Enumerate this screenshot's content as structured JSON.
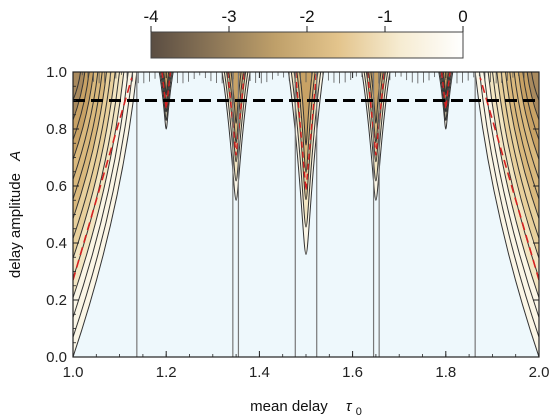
{
  "chart_data": {
    "type": "heatmap",
    "title": "",
    "xlabel": "mean delay",
    "xlabel_symbol": "τ",
    "xlabel_subscript": "0",
    "ylabel": "delay amplitude",
    "ylabel_symbol": "A",
    "xlim": [
      1.0,
      2.0
    ],
    "ylim": [
      0.0,
      1.0
    ],
    "x_ticks": [
      1.0,
      1.2,
      1.4,
      1.6,
      1.8,
      2.0
    ],
    "x_tick_labels": [
      "1.0",
      "1.2",
      "1.4",
      "1.6",
      "1.8",
      "2.0"
    ],
    "y_ticks": [
      0.0,
      0.2,
      0.4,
      0.6,
      0.8,
      1.0
    ],
    "y_tick_labels": [
      "0.0",
      "0.2",
      "0.4",
      "0.6",
      "0.8",
      "1.0"
    ],
    "colorbar": {
      "range": [
        -4,
        0
      ],
      "ticks": [
        -4,
        -3,
        -2,
        -1,
        0
      ],
      "tick_labels": [
        "-4",
        "-3",
        "-2",
        "-1",
        "0"
      ],
      "colors": [
        "#5a4d42",
        "#8c7657",
        "#bfa06a",
        "#e3c48c",
        "#f6ecd2",
        "#ffffff"
      ]
    },
    "background_color": "#eef8fc",
    "dashed_line": {
      "y": 0.9,
      "style": "dashed",
      "color": "#000000"
    },
    "vertical_lines_x": [
      1.137,
      1.343,
      1.355,
      1.477,
      1.523,
      1.645,
      1.657,
      1.863
    ],
    "wedges": [
      {
        "name": "left",
        "x_at_y0": 1.0,
        "x_at_y1": 1.137,
        "side": "left"
      },
      {
        "name": "right",
        "x_at_y0": 2.0,
        "x_at_y1": 1.863,
        "side": "right"
      }
    ],
    "tongues": [
      {
        "center": 1.35,
        "width_at_top": 0.06,
        "tip_y": 0.55
      },
      {
        "center": 1.5,
        "width_at_top": 0.075,
        "tip_y": 0.36
      },
      {
        "center": 1.65,
        "width_at_top": 0.06,
        "tip_y": 0.55
      },
      {
        "center": 1.2,
        "width_at_top": 0.03,
        "tip_y": 0.8
      },
      {
        "center": 1.8,
        "width_at_top": 0.03,
        "tip_y": 0.8
      }
    ],
    "contour_line_color": "#333333",
    "highlight_contour_color": "#d62020"
  }
}
